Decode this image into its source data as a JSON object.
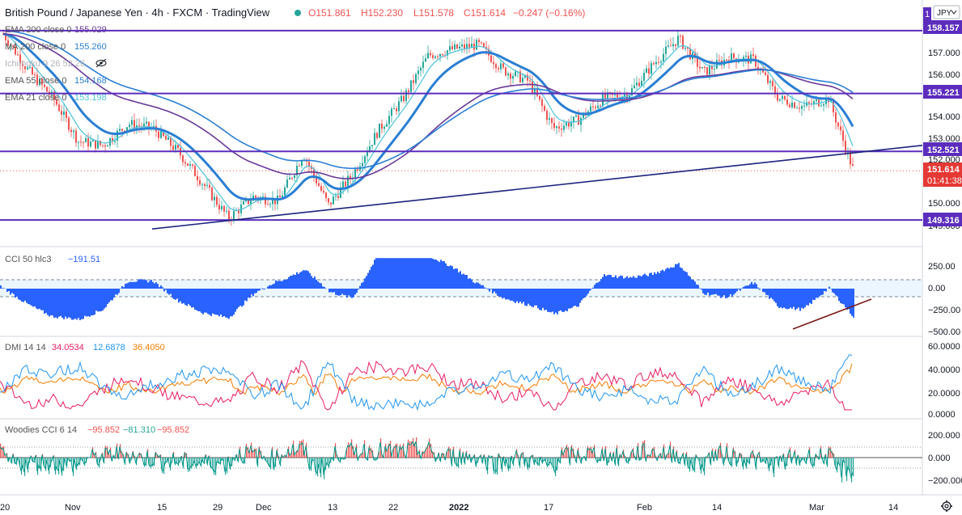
{
  "header": {
    "symbol": "British Pound / Japanese Yen · 4h · FXCM · TradingView",
    "open": "O151.861",
    "high": "H152.230",
    "low": "L151.578",
    "close": "C151.614",
    "change": "−0.247 (−0.16%)",
    "currency": "JPY"
  },
  "legend": {
    "ema200": {
      "label": "EMA 200 close 0",
      "value": "155.029"
    },
    "ma200": {
      "label": "MA 200 close 0",
      "value": "155.260"
    },
    "ichimoku": {
      "label": "Ichimoku 9 26 52 26"
    },
    "ema55": {
      "label": "EMA 55 close 0",
      "value": "154.168"
    },
    "ema21": {
      "label": "EMA 21 close 0",
      "value": "153.198"
    }
  },
  "price_axis": {
    "ticks": [
      "157.000",
      "156.000",
      "155.000",
      "154.000",
      "153.000",
      "152.000",
      "150.000",
      "149.000"
    ],
    "level_labels": {
      "top": "158.157",
      "upper": "155.221",
      "middle": "152.521",
      "bottom": "149.316",
      "last": "151.614",
      "countdown": "01:41:38",
      "partial": "1"
    }
  },
  "time_axis": {
    "labels": [
      "20",
      "Nov",
      "15",
      "29",
      "Dec",
      "13",
      "22",
      "2022",
      "17",
      "Feb",
      "14",
      "Mar",
      "14"
    ]
  },
  "cci": {
    "label": "CCI 50 hlc3",
    "value": "−191.51",
    "ticks": [
      "250.00",
      "0.00",
      "−250.00",
      "−500.00"
    ]
  },
  "dmi": {
    "label": "DMI 14 14",
    "plus_di": "34.0534",
    "minus_di": "12.6878",
    "adx": "36.4050",
    "ticks": [
      "60.0000",
      "40.0000",
      "20.0000",
      "0.0000"
    ]
  },
  "woodies": {
    "label": "Woodies CCI 6 14",
    "v1": "−95.852",
    "v2": "−81.310",
    "v3": "−95.852",
    "ticks": [
      "200.000",
      "0.000",
      "−200.000"
    ]
  },
  "colors": {
    "up": "#26a69a",
    "down": "#ef5350",
    "level": "#5b2dbd",
    "trend": "#1a237e",
    "ema21": "#4dc3dd",
    "ema55": "#2a7fd4",
    "ema200": "#6a3a9a",
    "ma200": "#2a7fd4",
    "cci": "#2962ff",
    "adx": "#f57c00",
    "plus_di": "#e91e63",
    "minus_di": "#2196f3"
  },
  "chart_data": {
    "type": "candlestick",
    "title": "British Pound / Japanese Yen · 4h · FXCM",
    "price_range": [
      148.6,
      158.6
    ],
    "horizontal_levels": [
      158.157,
      155.221,
      152.521,
      149.316
    ],
    "last_price": 151.614,
    "trendline": {
      "start": [
        "mid Nov",
        148.9
      ],
      "end": [
        "mid Mar",
        152.8
      ]
    },
    "price_path": [
      [
        "Oct 20",
        158.0
      ],
      [
        "Nov 1",
        156.3
      ],
      [
        "Nov 8",
        155.0
      ],
      [
        "Nov 12",
        153.0
      ],
      [
        "Nov 15",
        152.8
      ],
      [
        "Nov 22",
        153.8
      ],
      [
        "Nov 26",
        153.6
      ],
      [
        "Nov 29",
        152.5
      ],
      [
        "Dec 1",
        151.0
      ],
      [
        "Dec 6",
        149.4
      ],
      [
        "Dec 10",
        150.4
      ],
      [
        "Dec 13",
        150.2
      ],
      [
        "Dec 17",
        152.4
      ],
      [
        "Dec 20",
        150.0
      ],
      [
        "Dec 22",
        151.5
      ],
      [
        "Dec 27",
        153.5
      ],
      [
        "Dec 31",
        155.0
      ],
      [
        "Jan 4",
        157.0
      ],
      [
        "Jan 10",
        157.3
      ],
      [
        "Jan 13",
        157.5
      ],
      [
        "Jan 17",
        156.3
      ],
      [
        "Jan 21",
        155.8
      ],
      [
        "Jan 25",
        153.6
      ],
      [
        "Jan 28",
        154.0
      ],
      [
        "Feb 1",
        155.0
      ],
      [
        "Feb 4",
        155.2
      ],
      [
        "Feb 8",
        156.6
      ],
      [
        "Feb 11",
        157.8
      ],
      [
        "Feb 14",
        156.2
      ],
      [
        "Feb 17",
        156.9
      ],
      [
        "Feb 22",
        156.8
      ],
      [
        "Feb 25",
        155.0
      ],
      [
        "Mar 1",
        154.6
      ],
      [
        "Mar 4",
        155.0
      ],
      [
        "Mar 7",
        151.6
      ]
    ],
    "indicators": {
      "ema21": 153.198,
      "ema55": 154.168,
      "ema200": 155.029,
      "ma200": 155.26
    },
    "cci_50": {
      "last": -191.51,
      "range": [
        -500,
        350
      ]
    },
    "dmi_14": {
      "plus_di": 34.0534,
      "minus_di": 12.6878,
      "adx": 36.405,
      "range": [
        0,
        60
      ]
    },
    "woodies_cci": {
      "last": -95.852,
      "range": [
        -300,
        300
      ]
    }
  }
}
